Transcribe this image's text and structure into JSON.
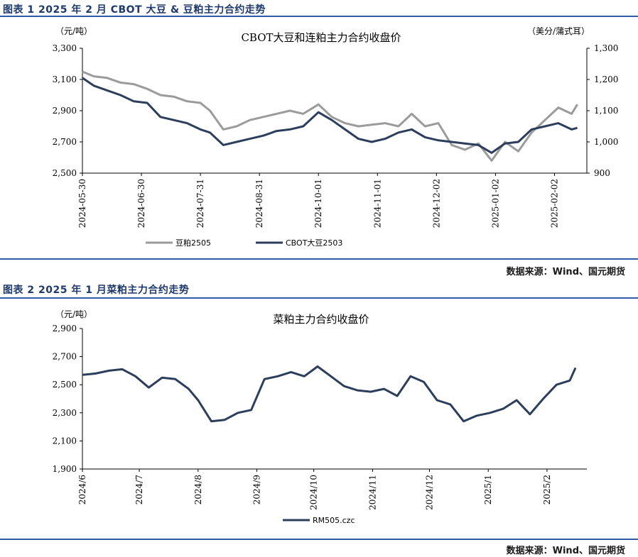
{
  "figures": [
    {
      "caption": "图表 1 2025 年 2 月 CBOT 大豆 & 豆粕主力合约走势",
      "source": "数据来源：Wind、国元期货"
    },
    {
      "caption": "图表 2 2025 年 1 月菜粕主力合约走势",
      "source": "数据来源：Wind、国元期货"
    }
  ],
  "chart_data": [
    {
      "type": "line",
      "title": "CBOT大豆和连粕主力合约收盘价",
      "left_unit": "（元/吨）",
      "right_unit": "（美分/蒲式耳）",
      "x_ticks": [
        "2024-05-30",
        "2024-06-30",
        "2024-07-31",
        "2024-08-31",
        "2024-10-01",
        "2024-11-01",
        "2024-12-02",
        "2025-01-02",
        "2025-02-02"
      ],
      "ylim_left": [
        2500,
        3300
      ],
      "yticks_left": [
        "2,500",
        "2,700",
        "2,900",
        "3,100",
        "3,300"
      ],
      "ylim_right": [
        900,
        1300
      ],
      "yticks_right": [
        "900",
        "1,000",
        "1,100",
        "1,200",
        "1,300"
      ],
      "grid": false,
      "legend": "bottom",
      "series": [
        {
          "name": "豆粕2505",
          "axis": "left",
          "color": "#9b9b9b",
          "x": [
            "2024-05-30",
            "2024-06-05",
            "2024-06-12",
            "2024-06-19",
            "2024-06-26",
            "2024-07-03",
            "2024-07-10",
            "2024-07-17",
            "2024-07-24",
            "2024-07-31",
            "2024-08-05",
            "2024-08-12",
            "2024-08-19",
            "2024-08-26",
            "2024-09-02",
            "2024-09-09",
            "2024-09-16",
            "2024-09-23",
            "2024-10-01",
            "2024-10-08",
            "2024-10-15",
            "2024-10-22",
            "2024-10-29",
            "2024-11-05",
            "2024-11-12",
            "2024-11-19",
            "2024-11-26",
            "2024-12-03",
            "2024-12-10",
            "2024-12-17",
            "2024-12-24",
            "2024-12-31",
            "2025-01-07",
            "2025-01-14",
            "2025-01-21",
            "2025-01-28",
            "2025-02-04",
            "2025-02-11",
            "2025-02-14"
          ],
          "values": [
            3150,
            3120,
            3110,
            3080,
            3070,
            3040,
            3000,
            2990,
            2960,
            2950,
            2900,
            2780,
            2800,
            2840,
            2860,
            2880,
            2900,
            2880,
            2940,
            2860,
            2820,
            2800,
            2810,
            2820,
            2800,
            2880,
            2800,
            2820,
            2680,
            2650,
            2690,
            2580,
            2700,
            2640,
            2760,
            2840,
            2920,
            2880,
            2940
          ]
        },
        {
          "name": "CBOT大豆2503",
          "axis": "right",
          "color": "#2c3e5c",
          "x": [
            "2024-05-30",
            "2024-06-05",
            "2024-06-12",
            "2024-06-19",
            "2024-06-26",
            "2024-07-03",
            "2024-07-10",
            "2024-07-17",
            "2024-07-24",
            "2024-07-31",
            "2024-08-05",
            "2024-08-12",
            "2024-08-19",
            "2024-08-26",
            "2024-09-02",
            "2024-09-09",
            "2024-09-16",
            "2024-09-23",
            "2024-10-01",
            "2024-10-08",
            "2024-10-15",
            "2024-10-22",
            "2024-10-29",
            "2024-11-05",
            "2024-11-12",
            "2024-11-19",
            "2024-11-26",
            "2024-12-03",
            "2024-12-10",
            "2024-12-17",
            "2024-12-24",
            "2024-12-31",
            "2025-01-07",
            "2025-01-14",
            "2025-01-21",
            "2025-01-28",
            "2025-02-04",
            "2025-02-11",
            "2025-02-14"
          ],
          "values": [
            1205,
            1180,
            1165,
            1150,
            1130,
            1125,
            1080,
            1070,
            1060,
            1040,
            1030,
            990,
            1000,
            1010,
            1020,
            1035,
            1040,
            1050,
            1095,
            1070,
            1040,
            1010,
            1000,
            1010,
            1030,
            1040,
            1015,
            1005,
            1000,
            995,
            990,
            965,
            995,
            1000,
            1040,
            1050,
            1060,
            1040,
            1045
          ]
        }
      ]
    },
    {
      "type": "line",
      "title": "菜粕主力合约收盘价",
      "left_unit": "（元/吨）",
      "x_ticks": [
        "2024/6",
        "2024/7",
        "2024/8",
        "2024/9",
        "2024/10",
        "2024/11",
        "2024/12",
        "2025/1",
        "2025/2"
      ],
      "ylim": [
        1900,
        2900
      ],
      "yticks": [
        "1,900",
        "2,100",
        "2,300",
        "2,500",
        "2,700",
        "2,900"
      ],
      "grid": false,
      "legend": "bottom",
      "series": [
        {
          "name": "RM505.czc",
          "color": "#2c3e5c",
          "x": [
            "2024-06-01",
            "2024-06-08",
            "2024-06-15",
            "2024-06-22",
            "2024-06-29",
            "2024-07-06",
            "2024-07-13",
            "2024-07-20",
            "2024-07-27",
            "2024-08-01",
            "2024-08-08",
            "2024-08-15",
            "2024-08-22",
            "2024-08-29",
            "2024-09-05",
            "2024-09-12",
            "2024-09-19",
            "2024-09-26",
            "2024-10-03",
            "2024-10-10",
            "2024-10-17",
            "2024-10-24",
            "2024-10-31",
            "2024-11-07",
            "2024-11-14",
            "2024-11-21",
            "2024-11-28",
            "2024-12-05",
            "2024-12-12",
            "2024-12-19",
            "2024-12-26",
            "2025-01-02",
            "2025-01-09",
            "2025-01-16",
            "2025-01-23",
            "2025-01-30",
            "2025-02-06",
            "2025-02-13",
            "2025-02-16"
          ],
          "values": [
            2570,
            2580,
            2600,
            2610,
            2560,
            2480,
            2550,
            2540,
            2470,
            2390,
            2240,
            2250,
            2300,
            2320,
            2540,
            2560,
            2590,
            2560,
            2630,
            2560,
            2490,
            2460,
            2450,
            2470,
            2420,
            2560,
            2520,
            2390,
            2360,
            2240,
            2280,
            2300,
            2330,
            2390,
            2290,
            2400,
            2500,
            2530,
            2620
          ]
        }
      ]
    }
  ]
}
